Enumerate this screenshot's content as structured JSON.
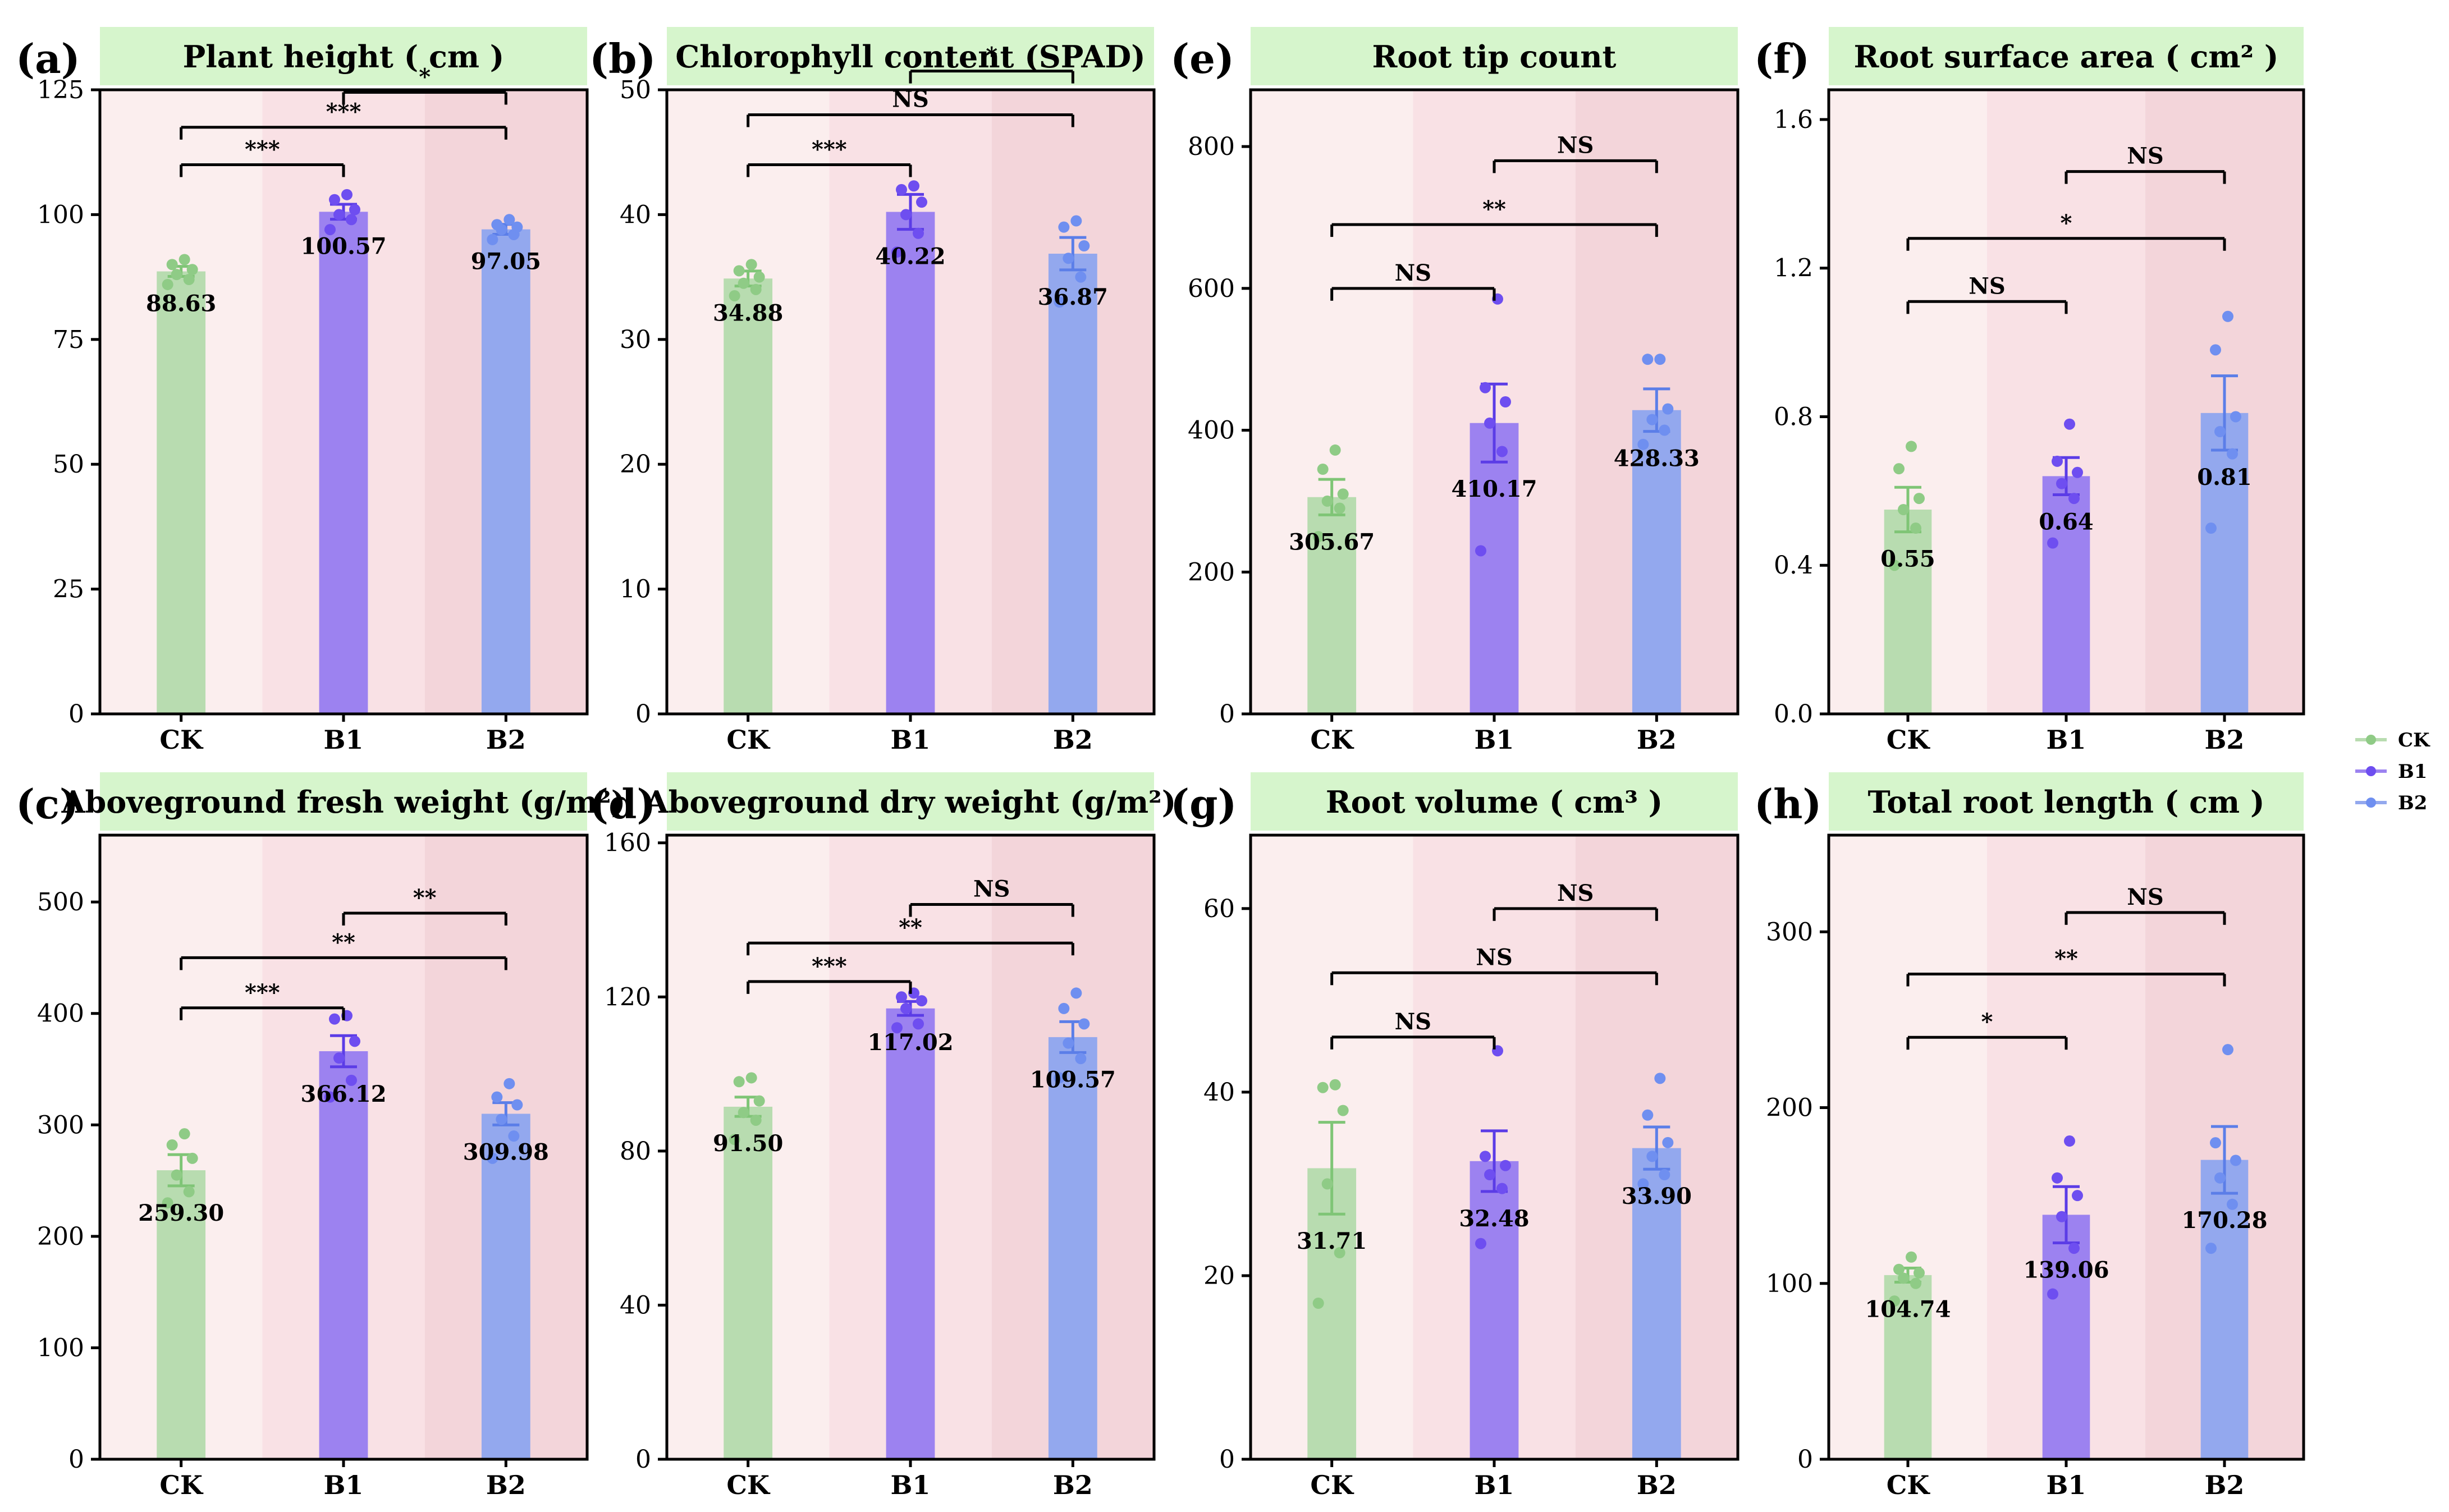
{
  "colors": {
    "CK": "#b8dcb0",
    "B1": "#9c82f0",
    "B2": "#93a8ee",
    "CK_dot": "#8fcb86",
    "B1_dot": "#6e4ef0",
    "B2_dot": "#6f8ff0",
    "CK_err": "#7fc576",
    "B1_err": "#5b3ce6",
    "B2_err": "#5b7ee8",
    "title_bg": "#d6f5cc",
    "bg_CK": "#fbeeee",
    "bg_B1": "#f9e1e5",
    "bg_B2": "#f3d5da"
  },
  "legend": [
    {
      "key": "CK",
      "label": "CK"
    },
    {
      "key": "B1",
      "label": "B1"
    },
    {
      "key": "B2",
      "label": "B2"
    }
  ],
  "chart_data": [
    {
      "type": "bar",
      "letter": "(a)",
      "title": "Plant height ( cm )",
      "categories": [
        "CK",
        "B1",
        "B2"
      ],
      "values": [
        88.63,
        100.57,
        97.05
      ],
      "value_labels": [
        "88.63",
        "100.57",
        "97.05"
      ],
      "errors": [
        1.0,
        1.5,
        1.0
      ],
      "points": [
        [
          86,
          87,
          88,
          89,
          90,
          91
        ],
        [
          97,
          99,
          100,
          101,
          103,
          104
        ],
        [
          95,
          96,
          97,
          97.5,
          98,
          99
        ]
      ],
      "ylim": [
        0,
        125
      ],
      "yticks": [
        0,
        25,
        50,
        75,
        100,
        125
      ],
      "ytick_labels": [
        "0",
        "25",
        "50",
        "75",
        "100",
        "125"
      ],
      "sig": [
        {
          "from": 0,
          "to": 1,
          "label": "***",
          "y": 110
        },
        {
          "from": 0,
          "to": 2,
          "label": "***",
          "y": 117.5
        },
        {
          "from": 1,
          "to": 2,
          "label": "*",
          "y": 124.5
        }
      ]
    },
    {
      "type": "bar",
      "letter": "(b)",
      "title": "Chlorophyll content (SPAD)",
      "categories": [
        "CK",
        "B1",
        "B2"
      ],
      "values": [
        34.88,
        40.22,
        36.87
      ],
      "value_labels": [
        "34.88",
        "40.22",
        "36.87"
      ],
      "errors": [
        0.6,
        1.4,
        1.3
      ],
      "points": [
        [
          33.5,
          34,
          34.5,
          35,
          35.5,
          36
        ],
        [
          37,
          38.5,
          40,
          41,
          42,
          42.3
        ],
        [
          33,
          35,
          36.5,
          37.5,
          39,
          39.5
        ]
      ],
      "ylim": [
        0,
        50
      ],
      "yticks": [
        0,
        10,
        20,
        30,
        40,
        50
      ],
      "ytick_labels": [
        "0",
        "10",
        "20",
        "30",
        "40",
        "50"
      ],
      "sig": [
        {
          "from": 0,
          "to": 1,
          "label": "***",
          "y": 44
        },
        {
          "from": 0,
          "to": 2,
          "label": "NS",
          "y": 48
        },
        {
          "from": 1,
          "to": 2,
          "label": "*",
          "y": 51.5
        }
      ]
    },
    {
      "type": "bar",
      "letter": "(e)",
      "title": "Root tip count",
      "categories": [
        "CK",
        "B1",
        "B2"
      ],
      "values": [
        305.67,
        410.17,
        428.33
      ],
      "value_labels": [
        "305.67",
        "410.17",
        "428.33"
      ],
      "errors": [
        25,
        55,
        30
      ],
      "points": [
        [
          250,
          290,
          300,
          310,
          345,
          372
        ],
        [
          230,
          370,
          410,
          440,
          460,
          585
        ],
        [
          380,
          400,
          415,
          430,
          500,
          500
        ]
      ],
      "ylim": [
        0,
        880
      ],
      "yticks": [
        0,
        200,
        400,
        600,
        800
      ],
      "ytick_labels": [
        "0",
        "200",
        "400",
        "600",
        "800"
      ],
      "sig": [
        {
          "from": 0,
          "to": 1,
          "label": "NS",
          "y": 600
        },
        {
          "from": 0,
          "to": 2,
          "label": "**",
          "y": 690
        },
        {
          "from": 1,
          "to": 2,
          "label": "NS",
          "y": 780
        }
      ]
    },
    {
      "type": "bar",
      "letter": "(f)",
      "title": "Root surface area ( cm² )",
      "categories": [
        "CK",
        "B1",
        "B2"
      ],
      "values": [
        0.55,
        0.64,
        0.81
      ],
      "value_labels": [
        "0.55",
        "0.64",
        "0.81"
      ],
      "errors": [
        0.06,
        0.05,
        0.1
      ],
      "points": [
        [
          0.4,
          0.5,
          0.55,
          0.58,
          0.66,
          0.72
        ],
        [
          0.46,
          0.58,
          0.62,
          0.65,
          0.68,
          0.78
        ],
        [
          0.5,
          0.7,
          0.76,
          0.8,
          0.98,
          1.07
        ]
      ],
      "ylim": [
        0,
        1.68
      ],
      "yticks": [
        0,
        0.4,
        0.8,
        1.2,
        1.6
      ],
      "ytick_labels": [
        "0.0",
        "0.4",
        "0.8",
        "1.2",
        "1.6"
      ],
      "sig": [
        {
          "from": 0,
          "to": 1,
          "label": "NS",
          "y": 1.11
        },
        {
          "from": 0,
          "to": 2,
          "label": "*",
          "y": 1.28
        },
        {
          "from": 1,
          "to": 2,
          "label": "NS",
          "y": 1.46
        }
      ]
    },
    {
      "type": "bar",
      "letter": "(c)",
      "title": "Aboveground fresh weight (g/m²)",
      "categories": [
        "CK",
        "B1",
        "B2"
      ],
      "values": [
        259.3,
        366.12,
        309.98
      ],
      "value_labels": [
        "259.30",
        "366.12",
        "309.98"
      ],
      "errors": [
        14,
        14,
        10
      ],
      "points": [
        [
          230,
          240,
          255,
          270,
          282,
          292
        ],
        [
          325,
          340,
          360,
          375,
          395,
          398
        ],
        [
          270,
          290,
          305,
          318,
          325,
          337
        ]
      ],
      "ylim": [
        0,
        560
      ],
      "yticks": [
        0,
        100,
        200,
        300,
        400,
        500
      ],
      "ytick_labels": [
        "0",
        "100",
        "200",
        "300",
        "400",
        "500"
      ],
      "sig": [
        {
          "from": 0,
          "to": 1,
          "label": "***",
          "y": 405
        },
        {
          "from": 0,
          "to": 2,
          "label": "**",
          "y": 450
        },
        {
          "from": 1,
          "to": 2,
          "label": "**",
          "y": 490
        }
      ]
    },
    {
      "type": "bar",
      "letter": "(d)",
      "title": "Aboveground dry weight (g/m²)",
      "categories": [
        "CK",
        "B1",
        "B2"
      ],
      "values": [
        91.5,
        117.02,
        109.57
      ],
      "value_labels": [
        "91.50",
        "117.02",
        "109.57"
      ],
      "errors": [
        2.5,
        1.8,
        4.0
      ],
      "points": [
        [
          83,
          88,
          90,
          93,
          98,
          99
        ],
        [
          112,
          113,
          117,
          119,
          120,
          121
        ],
        [
          99,
          104,
          108,
          113,
          117,
          121
        ]
      ],
      "ylim": [
        0,
        162
      ],
      "yticks": [
        0,
        40,
        80,
        120,
        160
      ],
      "ytick_labels": [
        "0",
        "40",
        "80",
        "120",
        "160"
      ],
      "sig": [
        {
          "from": 0,
          "to": 1,
          "label": "***",
          "y": 124
        },
        {
          "from": 0,
          "to": 2,
          "label": "**",
          "y": 134
        },
        {
          "from": 1,
          "to": 2,
          "label": "NS",
          "y": 144
        }
      ]
    },
    {
      "type": "bar",
      "letter": "(g)",
      "title": "Root volume ( cm³ )",
      "categories": [
        "CK",
        "B1",
        "B2"
      ],
      "values": [
        31.71,
        32.48,
        33.9
      ],
      "value_labels": [
        "31.71",
        "32.48",
        "33.90"
      ],
      "errors": [
        5.0,
        3.3,
        2.3
      ],
      "points": [
        [
          17,
          22.5,
          30,
          38,
          40.5,
          40.8
        ],
        [
          23.5,
          29.5,
          31,
          32,
          33,
          44.5
        ],
        [
          30,
          31,
          33,
          34.5,
          37.5,
          41.5
        ]
      ],
      "ylim": [
        0,
        68
      ],
      "yticks": [
        0,
        20,
        40,
        60
      ],
      "ytick_labels": [
        "0",
        "20",
        "40",
        "60"
      ],
      "sig": [
        {
          "from": 0,
          "to": 1,
          "label": "NS",
          "y": 46
        },
        {
          "from": 0,
          "to": 2,
          "label": "NS",
          "y": 53
        },
        {
          "from": 1,
          "to": 2,
          "label": "NS",
          "y": 60
        }
      ]
    },
    {
      "type": "bar",
      "letter": "(h)",
      "title": "Total root length ( cm )",
      "categories": [
        "CK",
        "B1",
        "B2"
      ],
      "values": [
        104.74,
        139.06,
        170.28
      ],
      "value_labels": [
        "104.74",
        "139.06",
        "170.28"
      ],
      "errors": [
        4,
        16,
        19
      ],
      "points": [
        [
          90,
          100,
          103,
          106,
          108,
          115
        ],
        [
          94,
          120,
          138,
          150,
          160,
          181
        ],
        [
          120,
          145,
          160,
          170,
          180,
          233
        ]
      ],
      "ylim": [
        0,
        355
      ],
      "yticks": [
        0,
        100,
        200,
        300
      ],
      "ytick_labels": [
        "0",
        "100",
        "200",
        "300"
      ],
      "sig": [
        {
          "from": 0,
          "to": 1,
          "label": "*",
          "y": 240
        },
        {
          "from": 0,
          "to": 2,
          "label": "**",
          "y": 276
        },
        {
          "from": 1,
          "to": 2,
          "label": "NS",
          "y": 311
        }
      ]
    }
  ]
}
